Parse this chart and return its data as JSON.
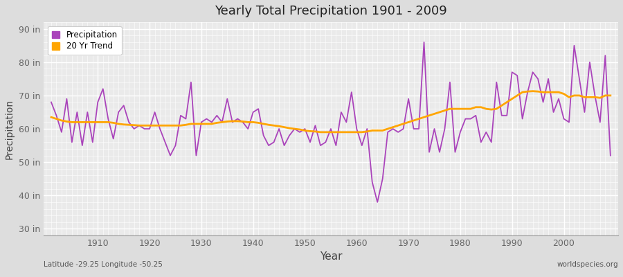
{
  "title": "Yearly Total Precipitation 1901 - 2009",
  "xlabel": "Year",
  "ylabel": "Precipitation",
  "bottom_left": "Latitude -29.25 Longitude -50.25",
  "bottom_right": "worldspecies.org",
  "ylim": [
    28,
    92
  ],
  "yticks": [
    30,
    40,
    50,
    60,
    70,
    80,
    90
  ],
  "ytick_labels": [
    "30 in",
    "40 in",
    "50 in",
    "60 in",
    "70 in",
    "80 in",
    "90 in"
  ],
  "xlim": [
    1899.5,
    2010.5
  ],
  "xticks": [
    1910,
    1920,
    1930,
    1940,
    1950,
    1960,
    1970,
    1980,
    1990,
    2000
  ],
  "precip_color": "#AA44BB",
  "trend_color": "#FFA500",
  "bg_color": "#EAEAEA",
  "fig_color": "#DDDDDD",
  "years": [
    1901,
    1902,
    1903,
    1904,
    1905,
    1906,
    1907,
    1908,
    1909,
    1910,
    1911,
    1912,
    1913,
    1914,
    1915,
    1916,
    1917,
    1918,
    1919,
    1920,
    1921,
    1922,
    1923,
    1924,
    1925,
    1926,
    1927,
    1928,
    1929,
    1930,
    1931,
    1932,
    1933,
    1934,
    1935,
    1936,
    1937,
    1938,
    1939,
    1940,
    1941,
    1942,
    1943,
    1944,
    1945,
    1946,
    1947,
    1948,
    1949,
    1950,
    1951,
    1952,
    1953,
    1954,
    1955,
    1956,
    1957,
    1958,
    1959,
    1960,
    1961,
    1962,
    1963,
    1964,
    1965,
    1966,
    1967,
    1968,
    1969,
    1970,
    1971,
    1972,
    1973,
    1974,
    1975,
    1976,
    1977,
    1978,
    1979,
    1980,
    1981,
    1982,
    1983,
    1984,
    1985,
    1986,
    1987,
    1988,
    1989,
    1990,
    1991,
    1992,
    1993,
    1994,
    1995,
    1996,
    1997,
    1998,
    1999,
    2000,
    2001,
    2002,
    2003,
    2004,
    2005,
    2006,
    2007,
    2008,
    2009
  ],
  "precip": [
    68,
    64,
    59,
    69,
    56,
    65,
    55,
    65,
    56,
    68,
    72,
    63,
    57,
    65,
    67,
    62,
    60,
    61,
    60,
    60,
    65,
    60,
    56,
    52,
    55,
    64,
    63,
    74,
    52,
    62,
    63,
    62,
    64,
    62,
    69,
    62,
    63,
    62,
    60,
    65,
    66,
    58,
    55,
    56,
    60,
    55,
    58,
    60,
    59,
    60,
    56,
    61,
    55,
    56,
    60,
    55,
    65,
    62,
    71,
    60,
    55,
    60,
    44,
    38,
    45,
    59,
    60,
    59,
    60,
    69,
    60,
    60,
    86,
    53,
    60,
    53,
    60,
    74,
    53,
    59,
    63,
    63,
    64,
    56,
    59,
    56,
    74,
    64,
    64,
    77,
    76,
    63,
    71,
    77,
    75,
    68,
    75,
    65,
    69,
    63,
    62,
    85,
    75,
    65,
    80,
    70,
    62,
    82,
    52
  ],
  "trend": [
    63.5,
    63.0,
    62.5,
    62.2,
    62.0,
    62.0,
    62.0,
    62.0,
    62.0,
    62.0,
    62.0,
    62.0,
    61.8,
    61.5,
    61.3,
    61.2,
    61.1,
    61.0,
    61.0,
    61.0,
    61.0,
    61.0,
    61.0,
    61.0,
    61.0,
    61.0,
    61.2,
    61.5,
    61.5,
    61.5,
    61.5,
    61.5,
    61.8,
    62.0,
    62.2,
    62.3,
    62.3,
    62.2,
    62.0,
    62.0,
    61.8,
    61.5,
    61.2,
    61.0,
    60.8,
    60.5,
    60.2,
    60.0,
    59.8,
    59.5,
    59.3,
    59.2,
    59.0,
    59.0,
    59.0,
    59.0,
    59.0,
    59.0,
    59.0,
    59.0,
    59.0,
    59.2,
    59.5,
    59.5,
    59.5,
    60.0,
    60.5,
    61.0,
    61.5,
    62.0,
    62.5,
    63.0,
    63.5,
    64.0,
    64.5,
    65.0,
    65.5,
    66.0,
    66.0,
    66.0,
    66.0,
    66.0,
    66.5,
    66.5,
    66.0,
    65.8,
    66.0,
    67.0,
    68.0,
    69.0,
    70.0,
    71.0,
    71.2,
    71.3,
    71.2,
    71.0,
    71.0,
    71.0,
    71.0,
    70.5,
    69.5,
    70.0,
    70.0,
    69.5,
    69.5,
    69.5,
    69.3,
    70.0,
    70.0
  ]
}
